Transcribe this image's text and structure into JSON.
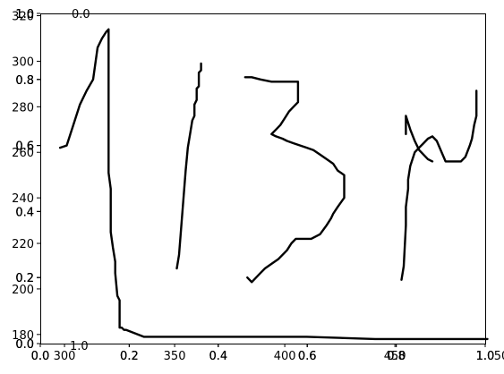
{
  "chart_data": {
    "type": "line",
    "title": "",
    "xlabel": "",
    "ylabel": "",
    "grid": false,
    "legend": "none",
    "primary_axes": {
      "xlim": [
        289,
        491
      ],
      "ylim": [
        176,
        321
      ],
      "x_ticks": [
        "300",
        "350",
        "400",
        "450",
        "500"
      ],
      "y_ticks": [
        "180",
        "200",
        "220",
        "240",
        "260",
        "280",
        "300",
        "320"
      ]
    },
    "overlay_axes": {
      "xlim": [
        0,
        1
      ],
      "ylim": [
        0,
        1
      ],
      "x_ticks": [
        "0.0",
        "0.2",
        "0.4",
        "0.6",
        "0.8",
        "1.0"
      ],
      "y_ticks": [
        "0.0",
        "0.2",
        "0.4",
        "0.6",
        "0.8",
        "1.0"
      ],
      "copies": [
        {
          "xtick_shift": 0,
          "ytick_shift": 0
        },
        {
          "xtick_shift": 0,
          "ytick_shift": 0.5
        },
        {
          "xtick_shift": 0.5,
          "ytick_shift": 0
        }
      ],
      "stray_labels": [
        "0.0",
        "1.0"
      ]
    },
    "series": [
      {
        "color": "#000000",
        "x": [
          298,
          301,
          304,
          307,
          310,
          313,
          315,
          317,
          319,
          320,
          320,
          320,
          321,
          321,
          321,
          322,
          323,
          323,
          324,
          325,
          325,
          326,
          327,
          328,
          336,
          372,
          410,
          441,
          492
        ],
        "y": [
          262,
          263,
          272,
          281,
          287,
          292,
          306,
          310,
          313,
          314,
          313,
          251,
          244,
          232,
          225,
          218,
          212,
          207,
          197,
          195,
          183,
          183,
          182,
          182,
          179,
          179,
          179,
          178,
          178
        ]
      },
      {
        "color": "#000000",
        "x": [
          351,
          352,
          355,
          356,
          357,
          358,
          359,
          359,
          360,
          360,
          361,
          361,
          362,
          362
        ],
        "y": [
          209,
          215,
          252,
          262,
          268,
          274,
          276,
          281,
          283,
          288,
          289,
          295,
          296,
          299
        ]
      },
      {
        "color": "#000000",
        "x": [
          383,
          385,
          387,
          389,
          391,
          394,
          397,
          399,
          401,
          403,
          405,
          406,
          409,
          412,
          416,
          419,
          421,
          422,
          424,
          427,
          427,
          427,
          424,
          422,
          419,
          416,
          413,
          410,
          407,
          404,
          401,
          399,
          396,
          394,
          396,
          398,
          400,
          402,
          404,
          406,
          406,
          406,
          400,
          394,
          389,
          385,
          382
        ],
        "y": [
          205,
          203,
          205,
          207,
          209,
          211,
          213,
          215,
          217,
          220,
          222,
          222,
          222,
          222,
          224,
          228,
          231,
          233,
          236,
          240,
          245,
          250,
          252,
          255,
          257,
          259,
          261,
          262,
          263,
          264,
          265,
          266,
          267,
          268,
          270,
          272,
          275,
          278,
          280,
          282,
          287,
          291,
          291,
          291,
          292,
          293,
          293
        ]
      },
      {
        "color": "#000000",
        "x": [
          453,
          454,
          455,
          455,
          456,
          456,
          457,
          459,
          461,
          463,
          465,
          467,
          469,
          473,
          477,
          480,
          482,
          484,
          485,
          486,
          487,
          487
        ],
        "y": [
          204,
          210,
          228,
          236,
          244,
          248,
          254,
          260,
          262,
          264,
          266,
          267,
          265,
          256,
          256,
          256,
          258,
          263,
          266,
          272,
          276,
          287
        ]
      },
      {
        "color": "#000000",
        "x": [
          455,
          455,
          457,
          459,
          461,
          463,
          465,
          467
        ],
        "y": [
          268,
          276,
          270,
          265,
          261,
          259,
          257,
          256
        ]
      }
    ]
  }
}
